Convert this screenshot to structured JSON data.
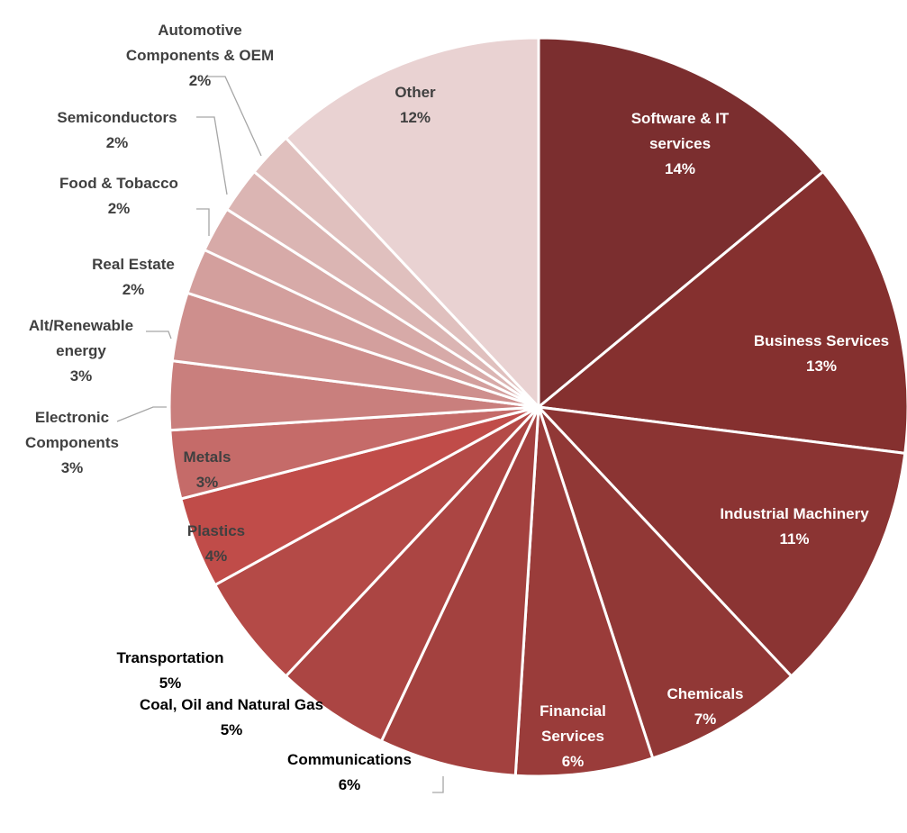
{
  "chart_data": {
    "type": "pie",
    "categories": [
      "Software & IT services",
      "Business Services",
      "Industrial Machinery",
      "Chemicals",
      "Financial Services",
      "Communications",
      "Coal, Oil and Natural Gas",
      "Transportation",
      "Plastics",
      "Metals",
      "Electronic Components",
      "Alt/Renewable energy",
      "Real Estate",
      "Food & Tobacco",
      "Semiconductors",
      "Automotive Components & OEM",
      "Other"
    ],
    "values": [
      14,
      13,
      11,
      7,
      6,
      6,
      5,
      5,
      4,
      3,
      3,
      3,
      2,
      2,
      2,
      2,
      12
    ],
    "value_labels": [
      "14%",
      "13%",
      "11%",
      "7%",
      "6%",
      "6%",
      "5%",
      "5%",
      "4%",
      "3%",
      "3%",
      "3%",
      "2%",
      "2%",
      "2%",
      "2%",
      "12%"
    ],
    "colors": [
      "#7b2e2f",
      "#85302f",
      "#8b3433",
      "#913836",
      "#9a3c3a",
      "#a3413f",
      "#ab4543",
      "#b44a47",
      "#c04c49",
      "#c56b69",
      "#c97f7d",
      "#ce8f8d",
      "#d39f9d",
      "#d7aaa8",
      "#dbb5b3",
      "#e0c0be",
      "#e9d2d2"
    ]
  }
}
